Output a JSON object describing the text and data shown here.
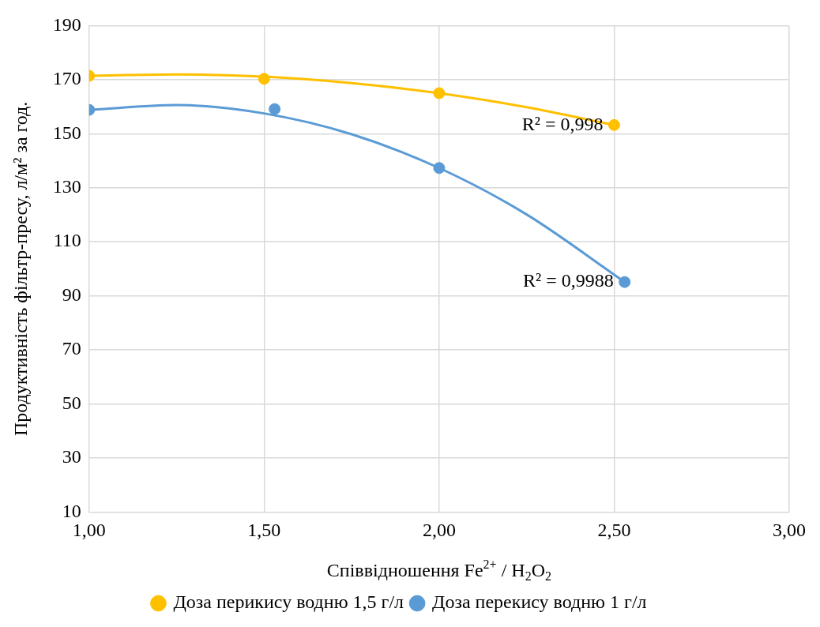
{
  "chart_data": {
    "type": "scatter",
    "xlabel": "Співвідношення Fe$^{2+}$ / H$_{2}$O$_{2}$",
    "ylabel": "Продуктивність фільтр-пресу, л/м² за год.",
    "x": [
      1.0,
      1.5,
      2.0,
      2.5
    ],
    "series": [
      {
        "name": "Доза перикису водню 1,5 г/л",
        "color": "#ffc000",
        "type": "scatter",
        "marker": "circle",
        "values": [
          171.4,
          170.3,
          165,
          153.2
        ]
      },
      {
        "name": "Доза перекису водню 1 г/л",
        "color": "#5b9bd5",
        "type": "scatter",
        "marker": "circle",
        "x": [
          1.0,
          1.53,
          2.0,
          2.53
        ],
        "values": [
          158.8,
          159.1,
          137.3,
          95.1
        ]
      },
      {
        "color": "#ffc000",
        "type": "line",
        "marker": "none",
        "x": [
          1.0,
          1.25,
          1.5,
          1.75,
          2.0,
          2.25,
          2.5
        ],
        "values": [
          171.4,
          171.9,
          171.1,
          168.7,
          165,
          159.8,
          153.2
        ]
      },
      {
        "color": "#5b9bd5",
        "type": "line",
        "marker": "none",
        "x": [
          1.0,
          1.25,
          1.5,
          1.75,
          2.0,
          2.25,
          2.53
        ],
        "values": [
          158.8,
          160.6,
          157.5,
          149.8,
          137.3,
          120.1,
          95.1
        ]
      }
    ],
    "xlim": [
      1,
      3
    ],
    "xticks": [
      {
        "value": 1,
        "label": "1,00"
      },
      {
        "value": 1.5,
        "label": "1,50"
      },
      {
        "value": 2,
        "label": "2,00"
      },
      {
        "value": 2.5,
        "label": "2,50"
      },
      {
        "value": 3,
        "label": "3,00"
      }
    ],
    "ylim": [
      10,
      190
    ],
    "yticks": [
      10,
      30,
      50,
      70,
      90,
      110,
      130,
      150,
      170,
      190
    ],
    "annotations": [
      "R² = 0,998",
      "R² = 0,9988"
    ],
    "grid": true,
    "legend": "bottom"
  }
}
